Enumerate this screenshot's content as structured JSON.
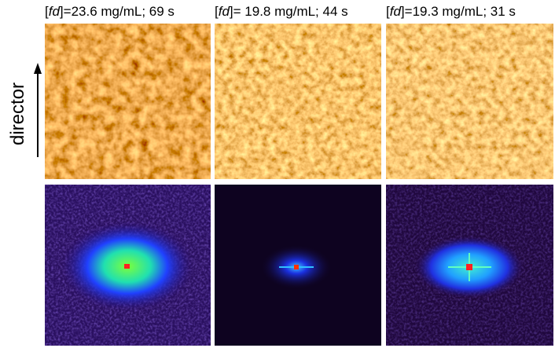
{
  "axis_label": "director",
  "panels": [
    {
      "prefix": "[",
      "italic": "fd",
      "suffix": "]=23.6 mg/mL; 69 s"
    },
    {
      "prefix": "[",
      "italic": "fd",
      "suffix": "]= 19.8 mg/mL; 44 s"
    },
    {
      "prefix": "[",
      "italic": "fd",
      "suffix": "]=19.3 mg/mL; 31 s"
    }
  ]
}
